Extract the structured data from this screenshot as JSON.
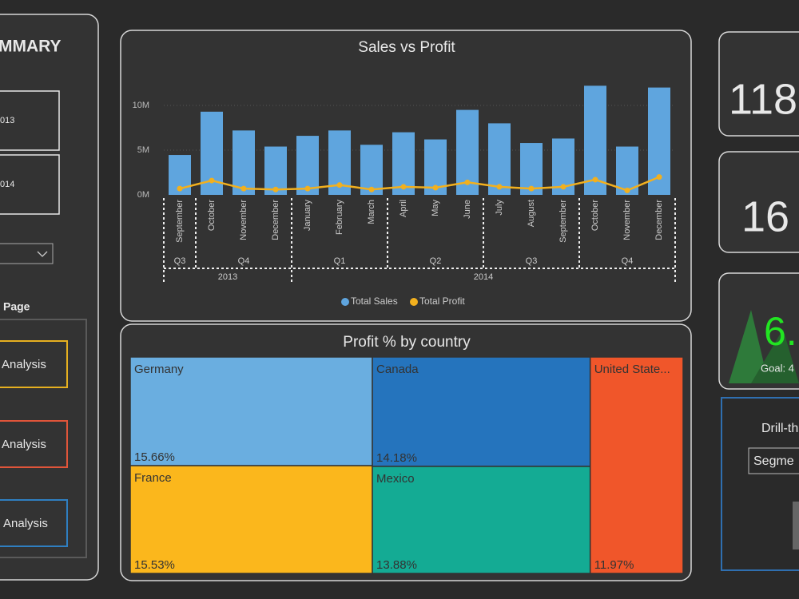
{
  "sidebar": {
    "title": "MMARY",
    "years": [
      "013",
      "014"
    ],
    "page_label": "Page",
    "buttons": [
      "Analysis",
      "Analysis",
      "Analysis"
    ]
  },
  "chart_data": [
    {
      "type": "bar",
      "title": "Sales vs Profit",
      "categories": [
        "September",
        "October",
        "November",
        "December",
        "January",
        "February",
        "March",
        "April",
        "May",
        "June",
        "July",
        "August",
        "September",
        "October",
        "November",
        "December"
      ],
      "quarters": [
        "Q3",
        "Q4",
        "Q4",
        "Q4",
        "Q1",
        "Q1",
        "Q1",
        "Q2",
        "Q2",
        "Q2",
        "Q3",
        "Q3",
        "Q3",
        "Q4",
        "Q4",
        "Q4"
      ],
      "years": [
        "2013",
        "2013",
        "2013",
        "2013",
        "2014",
        "2014",
        "2014",
        "2014",
        "2014",
        "2014",
        "2014",
        "2014",
        "2014",
        "2014",
        "2014",
        "2014"
      ],
      "series": [
        {
          "name": "Total Sales",
          "color": "#5fa5de",
          "values": [
            4460000,
            9300000,
            7200000,
            5400000,
            6600000,
            7200000,
            5600000,
            7000000,
            6200000,
            9500000,
            8000000,
            5800000,
            6300000,
            12200000,
            5400000,
            12000000
          ]
        },
        {
          "name": "Total Profit",
          "color": "#f2b01e",
          "type": "line",
          "values": [
            700000,
            1600000,
            700000,
            600000,
            700000,
            1100000,
            600000,
            900000,
            800000,
            1400000,
            900000,
            700000,
            900000,
            1700000,
            500000,
            2000000
          ]
        }
      ],
      "ylim": [
        0,
        12500000
      ],
      "yticks": [
        {
          "value": 0,
          "label": "0M"
        },
        {
          "value": 5000000,
          "label": "5M"
        },
        {
          "value": 10000000,
          "label": "10M"
        }
      ],
      "grid": true
    },
    {
      "type": "treemap",
      "title": "Profit % by country",
      "categories": [
        "Germany",
        "France",
        "Canada",
        "Mexico",
        "United State..."
      ],
      "values": [
        15.66,
        15.53,
        14.18,
        13.88,
        11.97
      ],
      "value_labels": [
        "15.66%",
        "15.53%",
        "14.18%",
        "13.88%",
        "11.97%"
      ],
      "colors": [
        "#6aaee0",
        "#fbb71c",
        "#2574bd",
        "#14ab94",
        "#f0562a"
      ]
    }
  ],
  "kpi_cards": [
    {
      "value": "118"
    },
    {
      "value": "16"
    },
    {
      "value": "6.",
      "goal": "Goal: 4"
    }
  ],
  "drill_through": {
    "title": "Drill-th",
    "select": "Segme"
  }
}
